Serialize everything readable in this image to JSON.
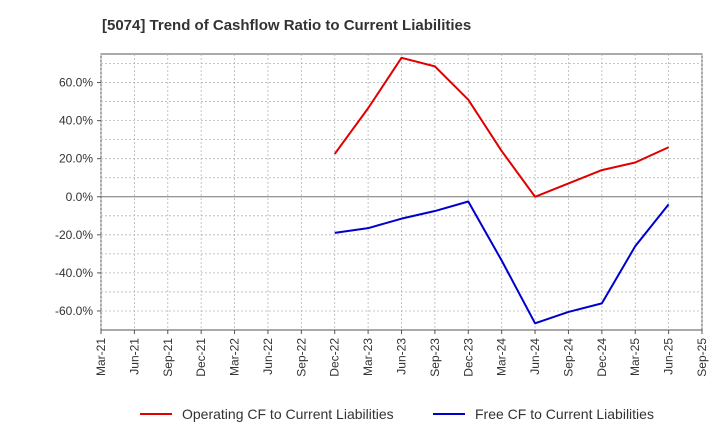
{
  "chart_data": {
    "type": "line",
    "title": "[5074]  Trend of Cashflow Ratio to Current Liabilities",
    "xlabel": "",
    "ylabel": "",
    "ylim": [
      -70,
      75
    ],
    "yticks": [
      60,
      40,
      20,
      0,
      -20,
      -40,
      -60
    ],
    "ytick_labels": [
      "60.0%",
      "40.0%",
      "20.0%",
      "0.0%",
      "-20.0%",
      "-40.0%",
      "-60.0%"
    ],
    "x_ticks": [
      "Mar-21",
      "Jun-21",
      "Sep-21",
      "Dec-21",
      "Mar-22",
      "Jun-22",
      "Sep-22",
      "Dec-22",
      "Mar-23",
      "Jun-23",
      "Sep-23",
      "Dec-23",
      "Mar-24",
      "Jun-24",
      "Sep-24",
      "Dec-24",
      "Mar-25",
      "Jun-25",
      "Sep-25"
    ],
    "grid": true,
    "legend_position": "bottom",
    "series": [
      {
        "name": "Operating CF to Current Liabilities",
        "color": "#e00000",
        "x": [
          "Dec-22",
          "Mar-23",
          "Jun-23",
          "Sep-23",
          "Dec-23",
          "Mar-24",
          "Jun-24",
          "Sep-24",
          "Dec-24",
          "Mar-25",
          "Jun-25"
        ],
        "values": [
          22.5,
          46.5,
          73.0,
          68.5,
          51.0,
          24.0,
          0.0,
          7.0,
          14.0,
          18.0,
          26.0
        ]
      },
      {
        "name": "Free CF to Current Liabilities",
        "color": "#0000cc",
        "x": [
          "Dec-22",
          "Mar-23",
          "Jun-23",
          "Sep-23",
          "Dec-23",
          "Mar-24",
          "Jun-24",
          "Sep-24",
          "Dec-24",
          "Mar-25",
          "Jun-25"
        ],
        "values": [
          -19.0,
          -16.5,
          -11.5,
          -7.5,
          -2.5,
          -33.5,
          -66.5,
          -60.5,
          -56.0,
          -26.0,
          -4.0
        ]
      }
    ]
  }
}
